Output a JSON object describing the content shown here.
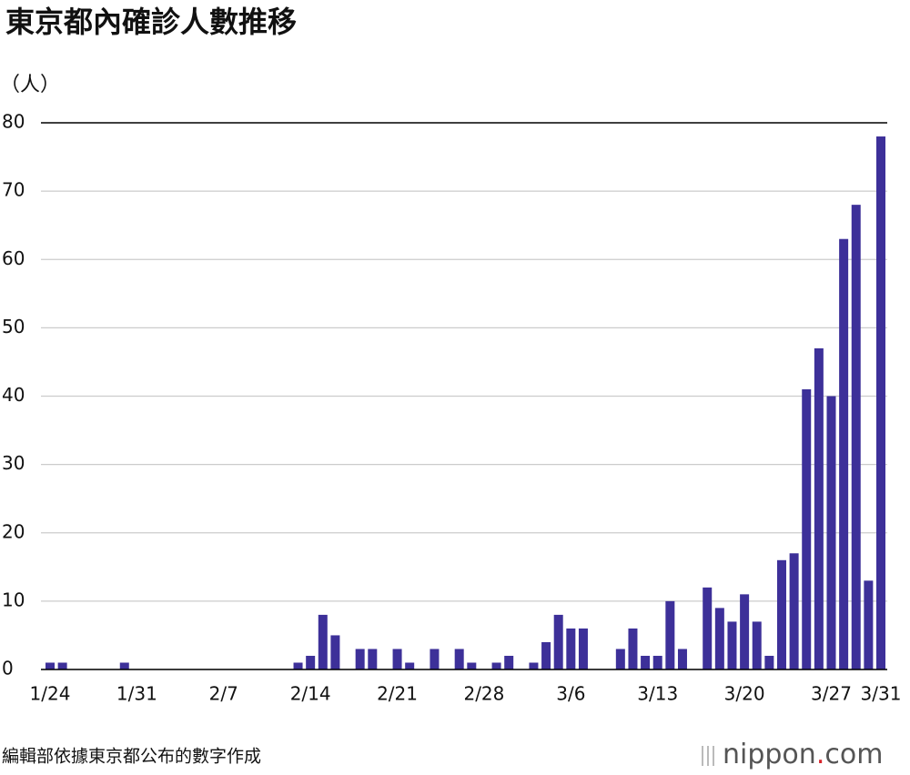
{
  "chart_data": {
    "type": "bar",
    "title": "東京都內確診人數推移",
    "y_label": "（人）",
    "source": "編輯部依據東京都公布的數字作成",
    "logo": [
      "nippon",
      ".",
      "com"
    ],
    "categories": [
      "1/24",
      null,
      null,
      null,
      null,
      null,
      null,
      "1/31",
      null,
      null,
      null,
      null,
      null,
      null,
      "2/7",
      null,
      null,
      null,
      null,
      null,
      null,
      "2/14",
      null,
      null,
      null,
      null,
      null,
      null,
      "2/21",
      null,
      null,
      null,
      null,
      null,
      null,
      "2/28",
      null,
      null,
      null,
      null,
      null,
      null,
      "3/6",
      null,
      null,
      null,
      null,
      null,
      null,
      "3/13",
      null,
      null,
      null,
      null,
      null,
      null,
      "3/20",
      null,
      null,
      null,
      null,
      null,
      null,
      "3/27",
      null,
      null,
      null,
      "3/31"
    ],
    "values": [
      1,
      1,
      0,
      0,
      0,
      0,
      1,
      0,
      0,
      0,
      0,
      0,
      0,
      0,
      0,
      0,
      0,
      0,
      0,
      0,
      1,
      2,
      8,
      5,
      0,
      3,
      3,
      0,
      3,
      1,
      0,
      3,
      0,
      3,
      1,
      0,
      1,
      2,
      0,
      1,
      4,
      8,
      6,
      6,
      0,
      0,
      3,
      6,
      2,
      2,
      10,
      3,
      0,
      12,
      9,
      7,
      11,
      7,
      2,
      16,
      17,
      41,
      47,
      40,
      63,
      68,
      13,
      78
    ],
    "color": "#3d3099",
    "ylim": [
      0,
      80
    ],
    "yticks": [
      0,
      10,
      20,
      30,
      40,
      50,
      60,
      70,
      80
    ],
    "grid": true
  }
}
